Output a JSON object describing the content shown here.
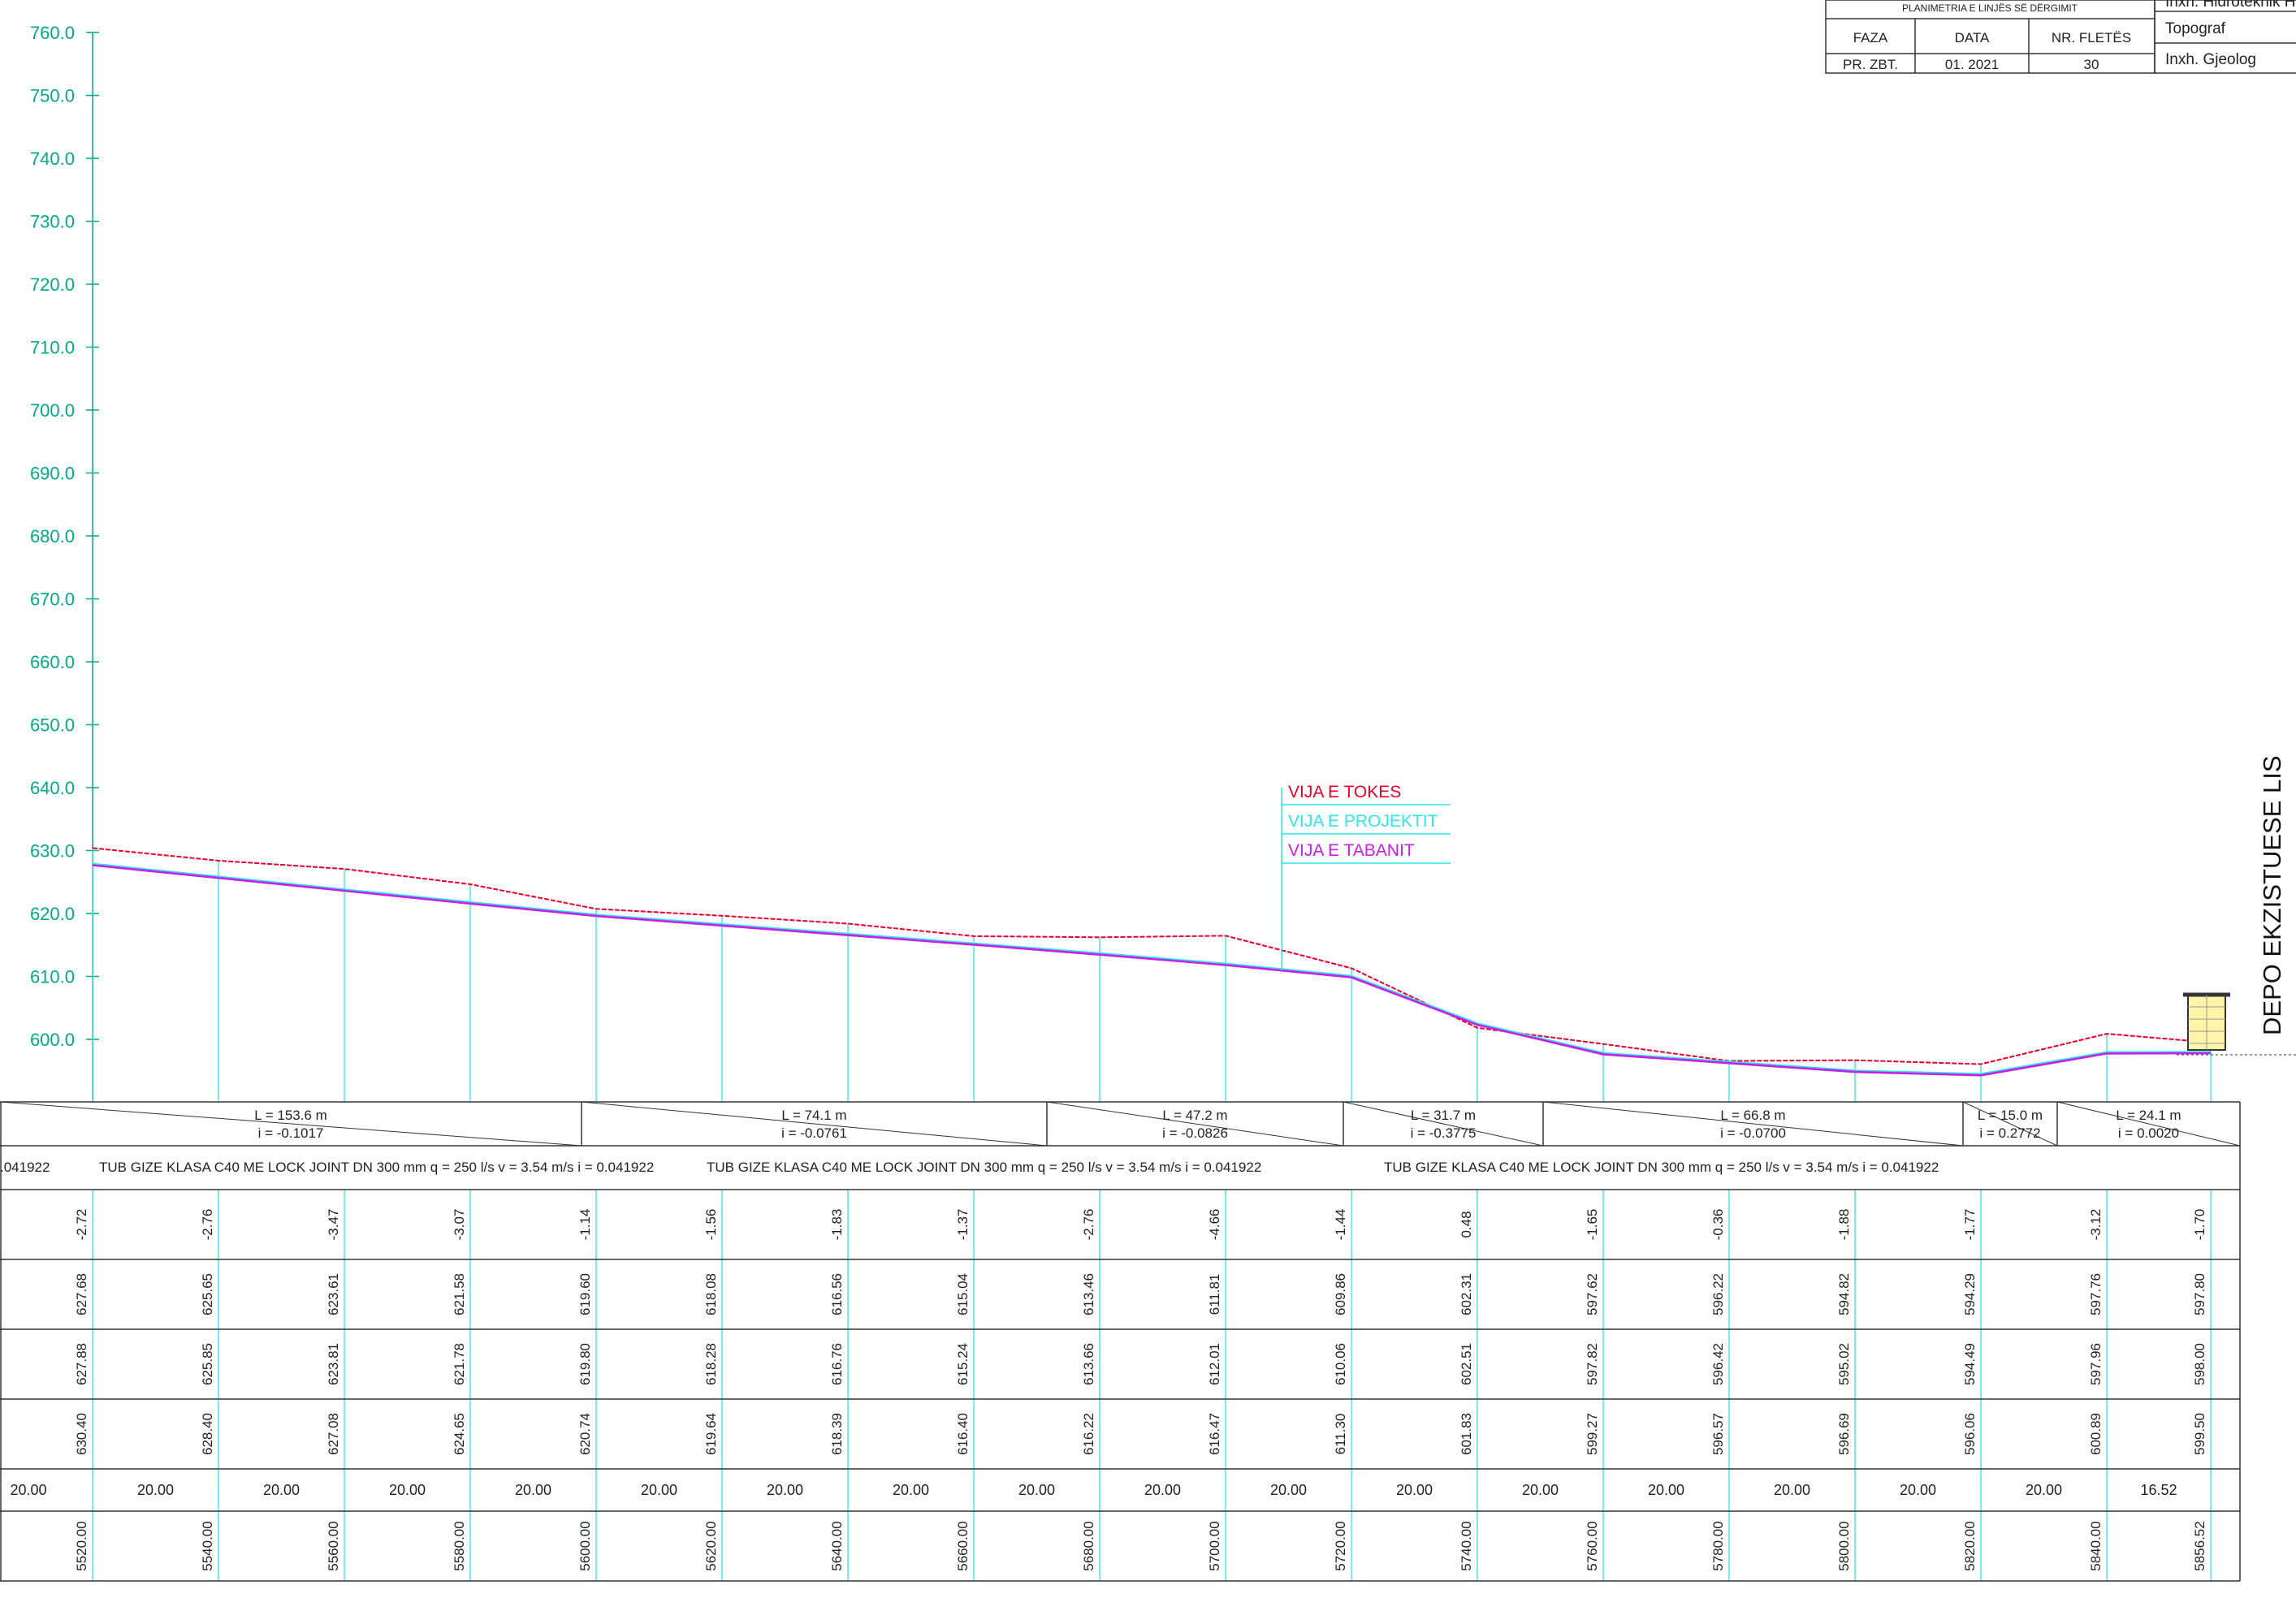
{
  "colors": {
    "ground": "#e8002a",
    "project": "#2de6e6",
    "invert": "#c81ee8",
    "axis": "#00a98a",
    "frame": "#333333"
  },
  "title_block": {
    "heading": "PLANIMETRIA E LINJËS SË DËRGIMIT",
    "col_labels": [
      "FAZA",
      "DATA",
      "NR. FLETËS"
    ],
    "col_values": [
      "PR. ZBT.",
      "01. 2021",
      "30"
    ],
    "roles": [
      "Inxh. Hidroteknik Ha",
      "Topograf",
      "Inxh. Gjeolog"
    ]
  },
  "side_label": "DEPO EKZISTUESE LIS",
  "legend": [
    "VIJA E TOKES",
    "VIJA E PROJEKTIT",
    "VIJA E TABANIT"
  ],
  "y_axis_ticks": [
    "760.0",
    "750.0",
    "740.0",
    "730.0",
    "720.0",
    "710.0",
    "700.0",
    "690.0",
    "680.0",
    "670.0",
    "660.0",
    "650.0",
    "640.0",
    "630.0",
    "620.0",
    "610.0",
    "600.0"
  ],
  "chart_data": {
    "type": "line",
    "ylim": [
      600,
      760
    ],
    "x": [
      5520,
      5540,
      5560,
      5580,
      5600,
      5620,
      5640,
      5660,
      5680,
      5700,
      5720,
      5740,
      5760,
      5780,
      5800,
      5820,
      5840,
      5856.52
    ],
    "series": [
      {
        "name": "VIJA E TOKES",
        "values": [
          630.4,
          628.4,
          627.08,
          624.65,
          620.74,
          619.64,
          618.39,
          616.4,
          616.22,
          616.47,
          611.3,
          601.83,
          599.27,
          596.57,
          596.69,
          596.06,
          600.89,
          599.5
        ]
      },
      {
        "name": "VIJA E PROJEKTIT",
        "values": [
          627.88,
          625.85,
          623.81,
          621.78,
          619.8,
          618.28,
          616.76,
          615.24,
          613.66,
          612.01,
          610.06,
          602.51,
          597.82,
          596.42,
          595.02,
          594.49,
          597.96,
          598.0
        ]
      },
      {
        "name": "VIJA E TABANIT",
        "values": [
          627.68,
          625.65,
          623.61,
          621.58,
          619.6,
          618.08,
          616.56,
          615.04,
          613.46,
          611.81,
          609.86,
          602.31,
          597.62,
          596.22,
          594.82,
          594.29,
          597.76,
          597.8
        ]
      }
    ]
  },
  "segments": [
    {
      "L": "L = 153.6 m",
      "i": "i = -0.1017"
    },
    {
      "L": "L = 74.1 m",
      "i": "i = -0.0761"
    },
    {
      "L": "L = 47.2 m",
      "i": "i = -0.0826"
    },
    {
      "L": "L = 31.7 m",
      "i": "i = -0.3775"
    },
    {
      "L": "L = 66.8 m",
      "i": "i = -0.0700"
    },
    {
      "L": "L = 15.0 m",
      "i": "i = 0.2772"
    },
    {
      "L": "L = 24.1 m",
      "i": "i = 0.0020"
    }
  ],
  "pipe_desc_fragment": ".041922",
  "pipe_desc": "TUB GIZE KLASA C40 ME LOCK JOINT DN 300 mm q = 250 l/s v = 3.54 m/s i = 0.041922",
  "row_depth": [
    "-2.72",
    "-2.76",
    "-3.47",
    "-3.07",
    "-1.14",
    "-1.56",
    "-1.83",
    "-1.37",
    "-2.76",
    "-4.66",
    "-1.44",
    "0.48",
    "-1.65",
    "-0.36",
    "-1.88",
    "-1.77",
    "-3.12",
    "-1.70"
  ],
  "row_invert": [
    "627.68",
    "625.65",
    "623.61",
    "621.58",
    "619.60",
    "618.08",
    "616.56",
    "615.04",
    "613.46",
    "611.81",
    "609.86",
    "602.31",
    "597.62",
    "596.22",
    "594.82",
    "594.29",
    "597.76",
    "597.80"
  ],
  "row_project": [
    "627.88",
    "625.85",
    "623.81",
    "621.78",
    "619.80",
    "618.28",
    "616.76",
    "615.24",
    "613.66",
    "612.01",
    "610.06",
    "602.51",
    "597.82",
    "596.42",
    "595.02",
    "594.49",
    "597.96",
    "598.00"
  ],
  "row_ground": [
    "630.40",
    "628.40",
    "627.08",
    "624.65",
    "620.74",
    "619.64",
    "618.39",
    "616.40",
    "616.22",
    "616.47",
    "611.30",
    "601.83",
    "599.27",
    "596.57",
    "596.69",
    "596.06",
    "600.89",
    "599.50"
  ],
  "row_distance": [
    "20.00",
    "20.00",
    "20.00",
    "20.00",
    "20.00",
    "20.00",
    "20.00",
    "20.00",
    "20.00",
    "20.00",
    "20.00",
    "20.00",
    "20.00",
    "20.00",
    "20.00",
    "20.00",
    "16.52"
  ],
  "row_chainage": [
    "5520.00",
    "5540.00",
    "5560.00",
    "5580.00",
    "5600.00",
    "5620.00",
    "5640.00",
    "5660.00",
    "5680.00",
    "5700.00",
    "5720.00",
    "5740.00",
    "5760.00",
    "5780.00",
    "5800.00",
    "5820.00",
    "5840.00",
    "5856.52"
  ]
}
